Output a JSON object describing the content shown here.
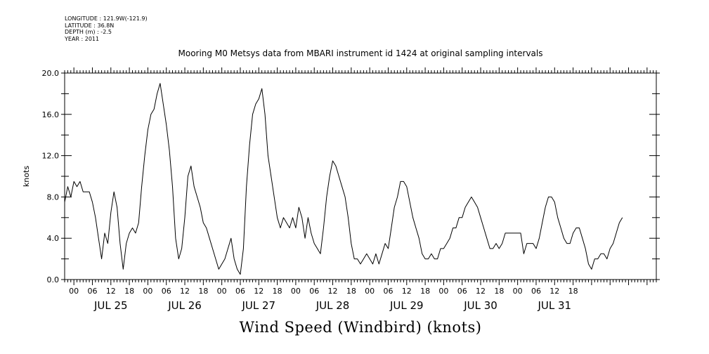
{
  "metadata": {
    "longitude": "LONGITUDE : 121.9W(-121.9)",
    "latitude": "LATITUDE : 36.8N",
    "depth": "DEPTH (m) : -2.5",
    "year": "YEAR : 2011"
  },
  "chart_data": {
    "type": "line",
    "title": "Mooring M0 Metsys data from MBARI instrument id 1424 at original sampling intervals",
    "xlabel": "Wind Speed (Windbird) (knots)",
    "ylabel": "knots",
    "ylim": [
      0,
      20
    ],
    "xlim_hours": [
      -3,
      189
    ],
    "yticks": [
      "0.0",
      "4.0",
      "8.0",
      "12.0",
      "16.0",
      "20.0"
    ],
    "hour_tick_labels": [
      "00",
      "06",
      "12",
      "18",
      "00",
      "06",
      "12",
      "18",
      "00",
      "06",
      "12",
      "18",
      "00",
      "06",
      "12",
      "18",
      "00",
      "06",
      "12",
      "18",
      "00",
      "06",
      "12",
      "18",
      "00",
      "06",
      "12",
      "18"
    ],
    "day_labels": [
      "JUL 25",
      "JUL 26",
      "JUL 27",
      "JUL 28",
      "JUL 29",
      "JUL 30",
      "JUL 31"
    ],
    "grid": false,
    "series": [
      {
        "values": [
          [
            -3,
            7.5
          ],
          [
            -2,
            9
          ],
          [
            -1,
            8
          ],
          [
            0,
            9.5
          ],
          [
            1,
            9
          ],
          [
            2,
            9.5
          ],
          [
            3,
            8.5
          ],
          [
            4,
            8.5
          ],
          [
            5,
            8.5
          ],
          [
            6,
            7.5
          ],
          [
            7,
            6
          ],
          [
            8,
            4
          ],
          [
            9,
            2
          ],
          [
            10,
            4.5
          ],
          [
            11,
            3.5
          ],
          [
            12,
            6.5
          ],
          [
            13,
            8.5
          ],
          [
            14,
            7
          ],
          [
            15,
            3.5
          ],
          [
            16,
            1
          ],
          [
            17,
            3.5
          ],
          [
            18,
            4.5
          ],
          [
            19,
            5
          ],
          [
            20,
            4.5
          ],
          [
            21,
            5.5
          ],
          [
            22,
            9
          ],
          [
            23,
            12
          ],
          [
            24,
            14.5
          ],
          [
            25,
            16
          ],
          [
            26,
            16.5
          ],
          [
            27,
            18
          ],
          [
            28,
            19
          ],
          [
            29,
            17
          ],
          [
            30,
            15
          ],
          [
            31,
            12.5
          ],
          [
            32,
            9
          ],
          [
            33,
            4
          ],
          [
            34,
            2
          ],
          [
            35,
            3
          ],
          [
            36,
            6
          ],
          [
            37,
            10
          ],
          [
            38,
            11
          ],
          [
            39,
            9
          ],
          [
            40,
            8
          ],
          [
            41,
            7
          ],
          [
            42,
            5.5
          ],
          [
            43,
            5
          ],
          [
            44,
            4
          ],
          [
            45,
            3
          ],
          [
            46,
            2
          ],
          [
            47,
            1
          ],
          [
            48,
            1.5
          ],
          [
            49,
            2
          ],
          [
            50,
            3
          ],
          [
            51,
            4
          ],
          [
            52,
            2
          ],
          [
            53,
            1
          ],
          [
            54,
            0.5
          ],
          [
            55,
            3
          ],
          [
            56,
            9
          ],
          [
            57,
            13
          ],
          [
            58,
            16
          ],
          [
            59,
            17
          ],
          [
            60,
            17.5
          ],
          [
            61,
            18.5
          ],
          [
            62,
            16
          ],
          [
            63,
            12
          ],
          [
            64,
            10
          ],
          [
            65,
            8
          ],
          [
            66,
            6
          ],
          [
            67,
            5
          ],
          [
            68,
            6
          ],
          [
            69,
            5.5
          ],
          [
            70,
            5
          ],
          [
            71,
            6
          ],
          [
            72,
            5
          ],
          [
            73,
            7
          ],
          [
            74,
            6
          ],
          [
            75,
            4
          ],
          [
            76,
            6
          ],
          [
            77,
            4.5
          ],
          [
            78,
            3.5
          ],
          [
            79,
            3
          ],
          [
            80,
            2.5
          ],
          [
            81,
            5
          ],
          [
            82,
            8
          ],
          [
            83,
            10
          ],
          [
            84,
            11.5
          ],
          [
            85,
            11
          ],
          [
            86,
            10
          ],
          [
            87,
            9
          ],
          [
            88,
            8
          ],
          [
            89,
            6
          ],
          [
            90,
            3.5
          ],
          [
            91,
            2
          ],
          [
            92,
            2
          ],
          [
            93,
            1.5
          ],
          [
            94,
            2
          ],
          [
            95,
            2.5
          ],
          [
            96,
            2
          ],
          [
            97,
            1.5
          ],
          [
            98,
            2.5
          ],
          [
            99,
            1.5
          ],
          [
            100,
            2.5
          ],
          [
            101,
            3.5
          ],
          [
            102,
            3
          ],
          [
            103,
            5
          ],
          [
            104,
            7
          ],
          [
            105,
            8
          ],
          [
            106,
            9.5
          ],
          [
            107,
            9.5
          ],
          [
            108,
            9
          ],
          [
            109,
            7.5
          ],
          [
            110,
            6
          ],
          [
            111,
            5
          ],
          [
            112,
            4
          ],
          [
            113,
            2.5
          ],
          [
            114,
            2
          ],
          [
            115,
            2
          ],
          [
            116,
            2.5
          ],
          [
            117,
            2
          ],
          [
            118,
            2
          ],
          [
            119,
            3
          ],
          [
            120,
            3
          ],
          [
            121,
            3.5
          ],
          [
            122,
            4
          ],
          [
            123,
            5
          ],
          [
            124,
            5
          ],
          [
            125,
            6
          ],
          [
            126,
            6
          ],
          [
            127,
            7
          ],
          [
            128,
            7.5
          ],
          [
            129,
            8
          ],
          [
            130,
            7.5
          ],
          [
            131,
            7
          ],
          [
            132,
            6
          ],
          [
            133,
            5
          ],
          [
            134,
            4
          ],
          [
            135,
            3
          ],
          [
            136,
            3
          ],
          [
            137,
            3.5
          ],
          [
            138,
            3
          ],
          [
            139,
            3.5
          ],
          [
            140,
            4.5
          ],
          [
            145,
            4.5
          ],
          [
            146,
            2.5
          ],
          [
            147,
            3.5
          ],
          [
            148,
            3.5
          ],
          [
            149,
            3.5
          ],
          [
            150,
            3
          ],
          [
            151,
            4
          ],
          [
            152,
            5.5
          ],
          [
            153,
            7
          ],
          [
            154,
            8
          ],
          [
            155,
            8
          ],
          [
            156,
            7.5
          ],
          [
            157,
            6
          ],
          [
            158,
            5
          ],
          [
            159,
            4
          ],
          [
            160,
            3.5
          ],
          [
            161,
            3.5
          ],
          [
            162,
            4.5
          ],
          [
            163,
            5
          ],
          [
            164,
            5
          ],
          [
            165,
            4
          ],
          [
            166,
            3
          ],
          [
            167,
            1.5
          ],
          [
            168,
            1
          ],
          [
            169,
            2
          ],
          [
            170,
            2
          ],
          [
            171,
            2.5
          ],
          [
            172,
            2.5
          ],
          [
            173,
            2
          ],
          [
            174,
            3
          ],
          [
            175,
            3.5
          ],
          [
            176,
            4.5
          ],
          [
            177,
            5.5
          ],
          [
            178,
            6
          ]
        ]
      }
    ]
  }
}
